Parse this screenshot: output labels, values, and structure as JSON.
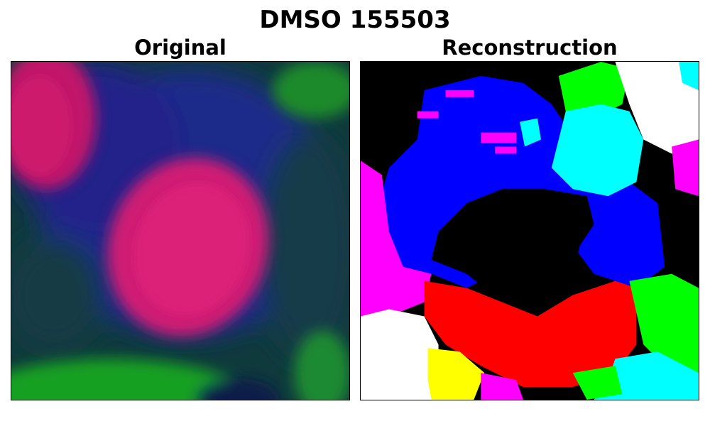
{
  "figure": {
    "title": "DMSO 155503"
  },
  "panels": [
    {
      "title": "Original"
    },
    {
      "title": "Reconstruction"
    }
  ],
  "colors": {
    "background": "#ffffff",
    "nucleus": "#e0186a",
    "cytoplasm": "#1a2a9a",
    "membrane": "#12a81a",
    "recon_blue": "#0000ff",
    "recon_red": "#ff0000",
    "recon_magenta": "#ff00ff",
    "recon_white": "#ffffff",
    "recon_yellow": "#ffff00",
    "recon_green": "#00ff00",
    "recon_cyan": "#00ffff",
    "recon_black": "#000000"
  }
}
